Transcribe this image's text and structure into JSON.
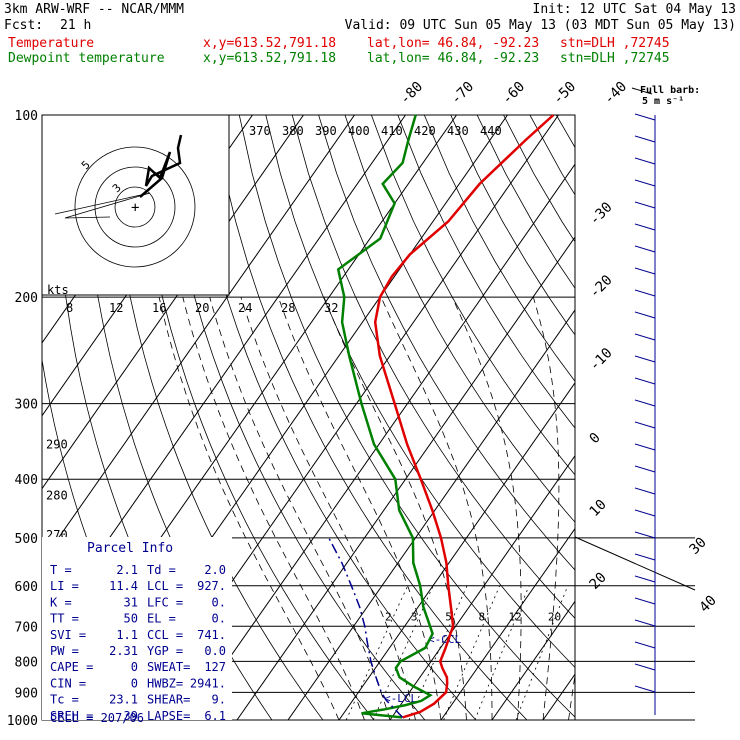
{
  "header": {
    "model": "3km ARW-WRF -- NCAR/MMM",
    "init": "Init: 12 UTC Sat 04 May 13",
    "fcst_label": "Fcst:",
    "fcst_value": "21 h",
    "valid": "Valid: 09 UTC Sun 05 May 13 (03 MDT Sun 05 May 13)",
    "temp_label": "Temperature",
    "dew_label": "Dewpoint temperature",
    "loc_xy": "x,y=613.52,791.18",
    "loc_latlon": "lat,lon= 46.84, -92.23",
    "loc_stn": "stn=DLH ,72745"
  },
  "barb_key": {
    "line1": "Full barb:",
    "line2": "5 m s⁻¹"
  },
  "colors": {
    "temperature": "#e00000",
    "dewpoint": "#008000",
    "parcel": "#000090",
    "frame": "#000000"
  },
  "chart_data": {
    "type": "line",
    "skewt": {
      "p_bottom": 1000,
      "p_top": 100,
      "skew": 1.0
    },
    "pressure_ticks": [
      100,
      200,
      300,
      400,
      500,
      600,
      700,
      800,
      900,
      1000
    ],
    "isotherm_labels": [
      -80,
      -70,
      -60,
      -50,
      -40,
      -30,
      -20,
      -10,
      0,
      10,
      20,
      30,
      40
    ],
    "theta_labels": [
      270,
      280,
      290
    ],
    "thetae_labels": [
      370,
      380,
      390,
      400,
      410,
      420,
      430,
      440
    ],
    "mixing_ratio_labels": [
      "2",
      "3",
      "5",
      "8",
      "12",
      "20"
    ],
    "hodograph": {
      "unit_label": "kts",
      "ring_labels": [
        "5",
        "3"
      ],
      "speed_labels": [
        "8",
        "12",
        "16",
        "20",
        "24",
        "28",
        "32"
      ]
    },
    "series": [
      {
        "name": "Temperature",
        "color": "#e00000",
        "p": [
          990,
          970,
          940,
          900,
          870,
          850,
          820,
          800,
          760,
          720,
          700,
          650,
          600,
          550,
          500,
          450,
          400,
          350,
          300,
          250,
          220,
          200,
          185,
          170,
          150,
          130,
          110,
          100
        ],
        "t": [
          2.1,
          4.8,
          6.4,
          7.2,
          6.2,
          5.3,
          3.1,
          1.8,
          1.0,
          0.0,
          -0.5,
          -3.6,
          -7.0,
          -10.5,
          -15.0,
          -20.5,
          -27.0,
          -34.5,
          -42.5,
          -52.0,
          -57.5,
          -60.0,
          -60.5,
          -60.0,
          -57.0,
          -56.0,
          -53.0,
          -51.0
        ]
      },
      {
        "name": "Dewpoint temperature",
        "color": "#008000",
        "p": [
          990,
          975,
          960,
          945,
          930,
          910,
          880,
          850,
          820,
          800,
          760,
          720,
          700,
          650,
          600,
          550,
          500,
          450,
          400,
          350,
          300,
          250,
          220,
          200,
          180,
          160,
          140,
          130,
          120,
          110,
          100
        ],
        "t": [
          2.0,
          -6.5,
          -2.5,
          1.0,
          3.5,
          4.5,
          0.0,
          -4.0,
          -6.0,
          -6.0,
          -3.0,
          -3.5,
          -5.0,
          -9.0,
          -12.5,
          -17.0,
          -20.5,
          -27.0,
          -32.0,
          -41.0,
          -49.0,
          -58.0,
          -64.0,
          -67.0,
          -72.0,
          -68.0,
          -70.0,
          -75.0,
          -74.0,
          -76.0,
          -78.0
        ]
      },
      {
        "name": "parcel",
        "color": "#000090",
        "p": [
          990,
          927,
          900,
          850,
          800,
          741,
          700,
          650,
          600,
          550,
          500
        ],
        "t": [
          2.1,
          -3.5,
          -5.5,
          -8.6,
          -11.8,
          -15.3,
          -17.8,
          -21.5,
          -26.0,
          -31.0,
          -37.0
        ]
      }
    ],
    "annotations": [
      "<-LCL",
      "<-CCL"
    ]
  },
  "parcel_info": {
    "title": "Parcel Info",
    "rows": [
      [
        "T  =",
        "2.1",
        "Td =",
        "2.0"
      ],
      [
        "LI =",
        "11.4",
        "LCL =",
        "927."
      ],
      [
        "K  =",
        "31",
        "LFC =",
        "0."
      ],
      [
        "TT =",
        "50",
        "EL  =",
        "0."
      ],
      [
        "SVI =",
        "1.1",
        "CCL =",
        "741."
      ],
      [
        "PW =",
        "2.31",
        "YGP =",
        "0.0"
      ],
      [
        "CAPE =",
        "0",
        "SWEAT=",
        "127"
      ],
      [
        "CIN  =",
        "0",
        "HWBZ=",
        "2941."
      ],
      [
        "Tc =",
        "23.1",
        "SHEAR=",
        "9."
      ],
      [
        "SREH =",
        "39",
        "LAPSE=",
        "6.1"
      ]
    ],
    "cell": "CELL = 207/06"
  }
}
